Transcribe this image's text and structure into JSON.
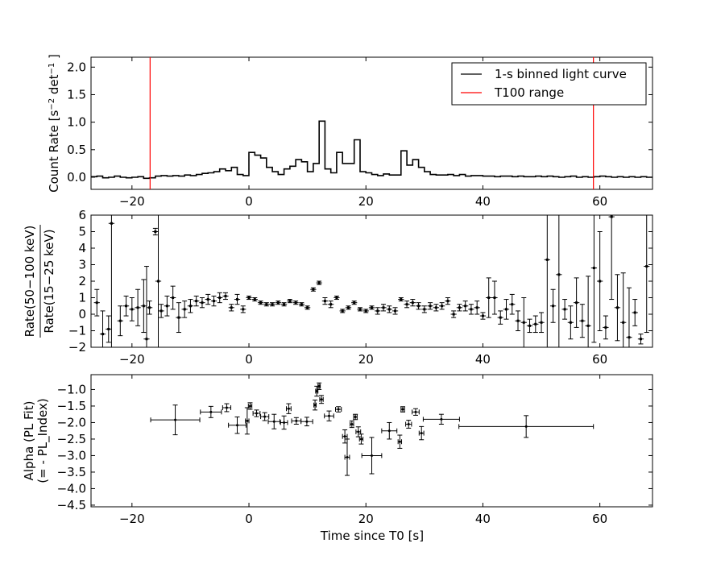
{
  "chart_data": [
    {
      "type": "line",
      "panel": "top",
      "ylabel": "Count Rate [s$^{-2}$ det$^{-1}$]",
      "ylabel_text": "Count Rate [s",
      "ylabel_sup1": "−2",
      "ylabel_mid": " det",
      "ylabel_sup2": "−1",
      "ylabel_end": " ]",
      "xlim": [
        -27,
        69
      ],
      "ylim": [
        -0.22,
        2.18
      ],
      "xticks": [
        -20,
        0,
        20,
        40,
        60
      ],
      "xtick_labels": [
        "−20",
        "0",
        "20",
        "40",
        "60"
      ],
      "yticks": [
        0.0,
        0.5,
        1.0,
        1.5,
        2.0
      ],
      "ytick_labels": [
        "0.0",
        "0.5",
        "1.0",
        "1.5",
        "2.0"
      ],
      "legend": {
        "placement": "upper-right",
        "entries": [
          {
            "label": "1-s binned light curve",
            "color": "#000000"
          },
          {
            "label": "T100 range",
            "color": "#ff0000"
          }
        ]
      },
      "vlines": [
        -16.9,
        58.9
      ],
      "vline_color": "#ff0000",
      "step_x": [
        -27,
        -26,
        -25,
        -24,
        -23,
        -22,
        -21,
        -20,
        -19,
        -18,
        -17,
        -16,
        -15,
        -14,
        -13,
        -12,
        -11,
        -10,
        -9,
        -8,
        -7,
        -6,
        -5,
        -4,
        -3,
        -2,
        -1,
        0,
        1,
        2,
        3,
        4,
        5,
        6,
        7,
        8,
        9,
        10,
        11,
        12,
        13,
        14,
        15,
        16,
        17,
        18,
        19,
        20,
        21,
        22,
        23,
        24,
        25,
        26,
        27,
        28,
        29,
        30,
        31,
        32,
        33,
        34,
        35,
        36,
        37,
        38,
        39,
        40,
        41,
        42,
        43,
        44,
        45,
        46,
        47,
        48,
        49,
        50,
        51,
        52,
        53,
        54,
        55,
        56,
        57,
        58,
        59,
        60,
        61,
        62,
        63,
        64,
        65,
        66,
        67,
        68
      ],
      "step_y": [
        0.01,
        0.02,
        -0.01,
        0.0,
        0.02,
        0.0,
        -0.01,
        0.0,
        0.01,
        -0.02,
        -0.01,
        0.02,
        0.03,
        0.02,
        0.03,
        0.02,
        0.04,
        0.03,
        0.05,
        0.07,
        0.08,
        0.1,
        0.15,
        0.12,
        0.18,
        0.05,
        0.03,
        0.45,
        0.4,
        0.35,
        0.18,
        0.1,
        0.05,
        0.15,
        0.2,
        0.32,
        0.28,
        0.1,
        0.25,
        1.02,
        0.15,
        0.08,
        0.45,
        0.25,
        0.25,
        0.68,
        0.1,
        0.08,
        0.05,
        0.03,
        0.06,
        0.04,
        0.04,
        0.48,
        0.22,
        0.32,
        0.18,
        0.1,
        0.05,
        0.04,
        0.04,
        0.05,
        0.03,
        0.05,
        0.02,
        0.03,
        0.03,
        0.02,
        0.02,
        0.01,
        0.02,
        0.02,
        0.01,
        0.02,
        0.01,
        0.01,
        0.02,
        0.01,
        0.02,
        0.01,
        0.0,
        0.01,
        0.02,
        0.0,
        0.01,
        0.0,
        0.01,
        0.02,
        0.01,
        0.0,
        0.01,
        0.0,
        0.01,
        0.0,
        0.01,
        0.0
      ]
    },
    {
      "type": "scatter",
      "panel": "middle",
      "ylabel_num": "Rate(50−100 keV)",
      "ylabel_den": "Rate(15−25 keV)",
      "xlim": [
        -27,
        69
      ],
      "ylim": [
        -2,
        6
      ],
      "xticks": [
        -20,
        0,
        20,
        40,
        60
      ],
      "xtick_labels": [
        "−20",
        "0",
        "20",
        "40",
        "60"
      ],
      "yticks": [
        -2,
        -1,
        0,
        1,
        2,
        3,
        4,
        5,
        6
      ],
      "ytick_labels": [
        "−2",
        "−1",
        "0",
        "1",
        "2",
        "3",
        "4",
        "5",
        "6"
      ],
      "points": [
        [
          -26,
          0.7,
          0.8
        ],
        [
          -25,
          -1.2,
          1.4
        ],
        [
          -24,
          -0.9,
          0.8
        ],
        [
          -23.5,
          5.5,
          8
        ],
        [
          -22,
          -0.4,
          0.9
        ],
        [
          -21,
          0.5,
          0.6
        ],
        [
          -20,
          0.3,
          0.7
        ],
        [
          -19,
          0.4,
          1.1
        ],
        [
          -18,
          0.5,
          1.6
        ],
        [
          -17.5,
          -1.5,
          4.4
        ],
        [
          -17,
          0.4,
          0.4
        ],
        [
          -16,
          5.0,
          0.2
        ],
        [
          -15.5,
          2.0,
          5
        ],
        [
          -15,
          0.2,
          0.4
        ],
        [
          -14,
          0.5,
          0.6
        ],
        [
          -13,
          1.0,
          0.7
        ],
        [
          -12,
          -0.2,
          0.9
        ],
        [
          -11,
          0.3,
          0.5
        ],
        [
          -10,
          0.5,
          0.4
        ],
        [
          -9,
          0.8,
          0.3
        ],
        [
          -8,
          0.7,
          0.3
        ],
        [
          -7,
          0.9,
          0.3
        ],
        [
          -6,
          0.8,
          0.3
        ],
        [
          -5,
          1.0,
          0.3
        ],
        [
          -4,
          1.1,
          0.2
        ],
        [
          -3,
          0.4,
          0.2
        ],
        [
          -2,
          0.9,
          0.3
        ],
        [
          -1,
          0.3,
          0.2
        ],
        [
          0,
          1.0,
          0.1
        ],
        [
          1,
          0.9,
          0.1
        ],
        [
          2,
          0.7,
          0.1
        ],
        [
          3,
          0.6,
          0.1
        ],
        [
          4,
          0.6,
          0.1
        ],
        [
          5,
          0.7,
          0.1
        ],
        [
          6,
          0.6,
          0.1
        ],
        [
          7,
          0.8,
          0.1
        ],
        [
          8,
          0.7,
          0.1
        ],
        [
          9,
          0.6,
          0.1
        ],
        [
          10,
          0.4,
          0.1
        ],
        [
          11,
          1.5,
          0.1
        ],
        [
          12,
          1.9,
          0.1
        ],
        [
          13,
          0.8,
          0.2
        ],
        [
          14,
          0.6,
          0.2
        ],
        [
          15,
          1.0,
          0.1
        ],
        [
          16,
          0.2,
          0.1
        ],
        [
          17,
          0.4,
          0.1
        ],
        [
          18,
          0.7,
          0.1
        ],
        [
          19,
          0.3,
          0.1
        ],
        [
          20,
          0.2,
          0.1
        ],
        [
          21,
          0.4,
          0.1
        ],
        [
          22,
          0.2,
          0.2
        ],
        [
          23,
          0.4,
          0.2
        ],
        [
          24,
          0.3,
          0.2
        ],
        [
          25,
          0.2,
          0.2
        ],
        [
          26,
          0.9,
          0.1
        ],
        [
          27,
          0.6,
          0.2
        ],
        [
          28,
          0.7,
          0.2
        ],
        [
          29,
          0.5,
          0.2
        ],
        [
          30,
          0.3,
          0.2
        ],
        [
          31,
          0.5,
          0.2
        ],
        [
          32,
          0.4,
          0.2
        ],
        [
          33,
          0.5,
          0.2
        ],
        [
          34,
          0.8,
          0.2
        ],
        [
          35,
          0.0,
          0.2
        ],
        [
          36,
          0.4,
          0.2
        ],
        [
          37,
          0.5,
          0.3
        ],
        [
          38,
          0.3,
          0.3
        ],
        [
          39,
          0.4,
          0.4
        ],
        [
          40,
          -0.1,
          0.2
        ],
        [
          41,
          1.0,
          1.2
        ],
        [
          42,
          1.0,
          1.0
        ],
        [
          43,
          -0.2,
          0.4
        ],
        [
          44,
          0.3,
          0.6
        ],
        [
          45,
          0.6,
          0.6
        ],
        [
          46,
          -0.4,
          0.6
        ],
        [
          47,
          -0.5,
          1.5
        ],
        [
          48,
          -0.7,
          0.4
        ],
        [
          49,
          -0.6,
          0.5
        ],
        [
          50,
          -0.5,
          0.6
        ],
        [
          51,
          3.3,
          6
        ],
        [
          52,
          0.5,
          1
        ],
        [
          53,
          2.4,
          5
        ],
        [
          54,
          0.3,
          0.6
        ],
        [
          55,
          -0.5,
          1
        ],
        [
          56,
          0.7,
          1.5
        ],
        [
          57,
          -0.4,
          1
        ],
        [
          58,
          -0.7,
          3
        ],
        [
          59,
          2.8,
          4.5
        ],
        [
          60,
          2.0,
          3
        ],
        [
          61,
          -0.8,
          0.7
        ],
        [
          62,
          5.9,
          5
        ],
        [
          63,
          0.4,
          2
        ],
        [
          64,
          -0.5,
          3
        ],
        [
          65,
          -1.4,
          3
        ],
        [
          66,
          0.1,
          0.8
        ],
        [
          67,
          -1.5,
          0.3
        ],
        [
          68,
          2.9,
          4
        ]
      ]
    },
    {
      "type": "scatter",
      "panel": "bottom",
      "ylabel_line1": "Alpha (PL Fit)",
      "ylabel_line2": "(= - PL_Index)",
      "xlabel": "Time since T0 [s]",
      "xlim": [
        -27,
        69
      ],
      "ylim": [
        -4.55,
        -0.55
      ],
      "xticks": [
        -20,
        0,
        20,
        40,
        60
      ],
      "xtick_labels": [
        "−20",
        "0",
        "20",
        "40",
        "60"
      ],
      "yticks": [
        -1.0,
        -1.5,
        -2.0,
        -2.5,
        -3.0,
        -3.5,
        -4.0,
        -4.5
      ],
      "ytick_labels": [
        "−1.0",
        "−1.5",
        "−2.0",
        "−2.5",
        "−3.0",
        "−3.5",
        "−4.0",
        "−4.5"
      ],
      "points": [
        [
          -12.6,
          4.2,
          -1.92,
          0.45
        ],
        [
          -6.5,
          1.8,
          -1.68,
          0.17
        ],
        [
          -3.8,
          0.7,
          -1.55,
          0.12
        ],
        [
          -2.0,
          1.5,
          -2.08,
          0.25
        ],
        [
          -0.3,
          0.3,
          -1.95,
          0.4
        ],
        [
          0.2,
          0.3,
          -1.5,
          0.1
        ],
        [
          1.3,
          0.6,
          -1.72,
          0.1
        ],
        [
          2.7,
          0.7,
          -1.82,
          0.12
        ],
        [
          4.3,
          1.0,
          -1.97,
          0.22
        ],
        [
          6.0,
          0.6,
          -2.0,
          0.2
        ],
        [
          6.8,
          0.4,
          -1.58,
          0.15
        ],
        [
          8.1,
          0.8,
          -1.95,
          0.1
        ],
        [
          9.9,
          1.0,
          -1.97,
          0.13
        ],
        [
          11.3,
          0.2,
          -1.47,
          0.15
        ],
        [
          11.6,
          0.2,
          -1.05,
          0.15
        ],
        [
          12.0,
          0.2,
          -0.9,
          0.1
        ],
        [
          12.4,
          0.3,
          -1.3,
          0.12
        ],
        [
          13.7,
          0.8,
          -1.8,
          0.15
        ],
        [
          15.3,
          0.5,
          -1.6,
          0.08
        ],
        [
          16.4,
          0.4,
          -2.42,
          0.2
        ],
        [
          16.8,
          0.4,
          -3.05,
          0.55
        ],
        [
          17.6,
          0.3,
          -2.05,
          0.1
        ],
        [
          18.2,
          0.3,
          -1.83,
          0.08
        ],
        [
          18.7,
          0.4,
          -2.28,
          0.15
        ],
        [
          19.2,
          0.3,
          -2.5,
          0.15
        ],
        [
          21.0,
          1.7,
          -3.0,
          0.55
        ],
        [
          24.0,
          1.3,
          -2.25,
          0.25
        ],
        [
          25.8,
          0.3,
          -2.58,
          0.2
        ],
        [
          26.3,
          0.3,
          -1.6,
          0.08
        ],
        [
          27.3,
          0.5,
          -2.05,
          0.12
        ],
        [
          28.5,
          0.6,
          -1.68,
          0.1
        ],
        [
          29.5,
          0.4,
          -2.32,
          0.2
        ],
        [
          32.9,
          3.1,
          -1.9,
          0.15
        ],
        [
          47.4,
          11.5,
          -2.12,
          0.33
        ]
      ]
    }
  ]
}
